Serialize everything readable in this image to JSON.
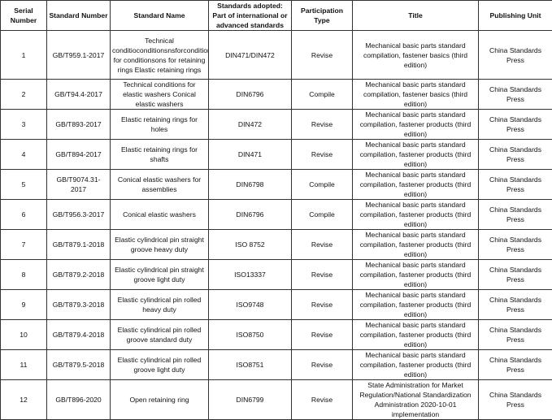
{
  "headers": [
    "Serial Number",
    "Standard Number",
    "Standard Name",
    "Standards adopted: Part of international or advanced standards",
    "Participation Type",
    "Title",
    "Publishing Unit"
  ],
  "rows": [
    [
      "1",
      "GB/T959.1-2017",
      "Technical conditioconditionsnsforconditionditions for conditionsons for retaining rings Elastic retaining rings",
      "DIN471/DIN472",
      "Revise",
      "Mechanical basic parts standard compilation, fastener basics (third edition)",
      "China Standards Press"
    ],
    [
      "2",
      "GB/T94.4-2017",
      "Technical conditions for elastic washers Conical elastic washers",
      "DIN6796",
      "Compile",
      "Mechanical basic parts standard compilation, fastener basics (third edition)",
      "China Standards Press"
    ],
    [
      "3",
      "GB/T893-2017",
      "Elastic retaining rings for holes",
      "DIN472",
      "Revise",
      "Mechanical basic parts standard compilation, fastener products (third edition)",
      "China Standards Press"
    ],
    [
      "4",
      "GB/T894-2017",
      "Elastic retaining rings for shafts",
      "DIN471",
      "Revise",
      "Mechanical basic parts standard compilation, fastener products (third edition)",
      "China Standards Press"
    ],
    [
      "5",
      "GB/T9074.31-2017",
      "Conical elastic washers for assemblies",
      "DIN6798",
      "Compile",
      "Mechanical basic parts standard compilation, fastener products (third edition)",
      "China Standards Press"
    ],
    [
      "6",
      "GB/T956.3-2017",
      "Conical elastic washers",
      "DIN6796",
      "Compile",
      "Mechanical basic parts standard compilation, fastener products (third edition)",
      "China Standards Press"
    ],
    [
      "7",
      "GB/T879.1-2018",
      "Elastic cylindrical pin straight groove heavy duty",
      "ISO 8752",
      "Revise",
      "Mechanical basic parts standard compilation, fastener products (third edition)",
      "China Standards Press"
    ],
    [
      "8",
      "GB/T879.2-2018",
      "Elastic cylindrical pin straight groove light duty",
      "ISO13337",
      "Revise",
      "Mechanical basic parts standard compilation, fastener products (third edition)",
      "China Standards Press"
    ],
    [
      "9",
      "GB/T879.3-2018",
      "Elastic cylindrical pin rolled heavy duty",
      "ISO9748",
      "Revise",
      "Mechanical basic parts standard compilation, fastener products (third edition)",
      "China Standards Press"
    ],
    [
      "10",
      "GB/T879.4-2018",
      "Elastic cylindrical pin rolled groove standard duty",
      "ISO8750",
      "Revise",
      "Mechanical basic parts standard compilation, fastener products (third edition)",
      "China Standards Press"
    ],
    [
      "11",
      "GB/T879.5-2018",
      "Elastic cylindrical pin rolled groove light duty",
      "ISO8751",
      "Revise",
      "Mechanical basic parts standard compilation, fastener products (third edition)",
      "China Standards Press"
    ],
    [
      "12",
      "GB/T896-2020",
      "Open retaining ring",
      "DIN6799",
      "Revise",
      "State Administration for Market Regulation/National Standardization Administration 2020-10-01 implementation",
      "China Standards Press"
    ]
  ]
}
